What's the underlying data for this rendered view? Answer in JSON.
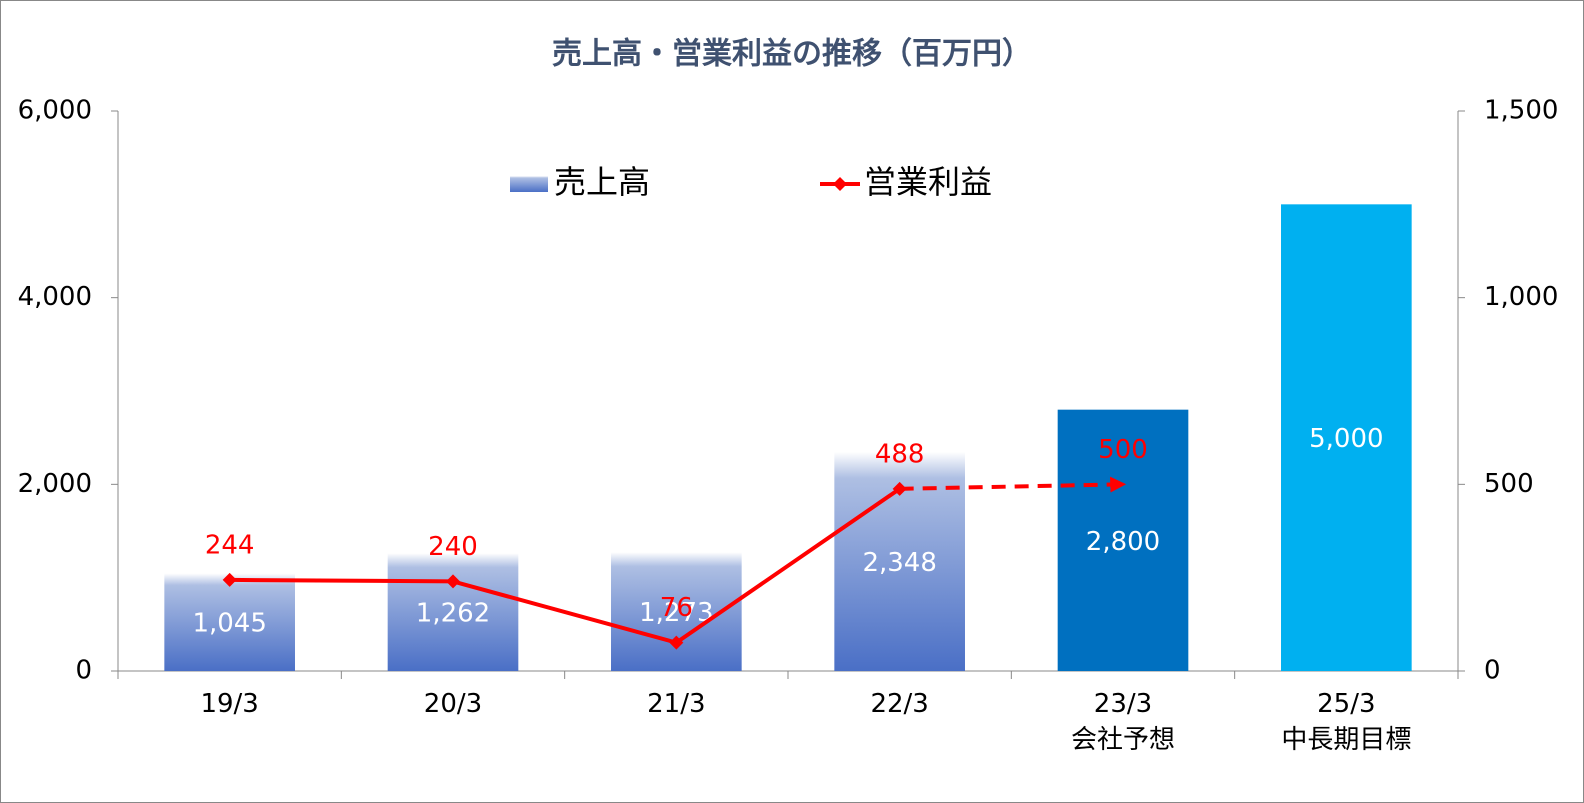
{
  "chart_data": {
    "type": "bar-line",
    "title": "売上高・営業利益の推移（百万円）",
    "categories": [
      "19/3",
      "20/3",
      "21/3",
      "22/3",
      "23/3\n会社予想",
      "25/3\n中長期目標"
    ],
    "series": [
      {
        "name": "売上高",
        "type": "bar",
        "color": "#4472c4",
        "colors": [
          "#4472c4",
          "#4472c4",
          "#4472c4",
          "#4472c4",
          "#0070c0",
          "#00b0f0"
        ],
        "gradient": [
          true,
          true,
          true,
          true,
          false,
          false
        ],
        "values": [
          1045,
          1262,
          1273,
          2348,
          2800,
          5000
        ],
        "value_labels": [
          "1,045",
          "1,262",
          "1,273",
          "2,348",
          "2,800",
          "5,000"
        ]
      },
      {
        "name": "営業利益",
        "type": "line",
        "color": "#ff0000",
        "axis": "y2",
        "dashed_from": 3,
        "values": [
          244,
          240,
          76,
          488,
          500,
          null
        ]
      }
    ],
    "ylim": [
      0,
      6000
    ],
    "yticks": [
      {
        "value": 0,
        "label": "0"
      },
      {
        "value": 2000,
        "label": "2,000"
      },
      {
        "value": 4000,
        "label": "4,000"
      },
      {
        "value": 6000,
        "label": "6,000"
      }
    ],
    "y2lim": [
      0,
      1500
    ],
    "y2ticks": [
      0,
      500,
      {
        "value": 1000,
        "label": "1,000"
      },
      {
        "value": 1500,
        "label": "1,500"
      }
    ],
    "legend": "top"
  }
}
